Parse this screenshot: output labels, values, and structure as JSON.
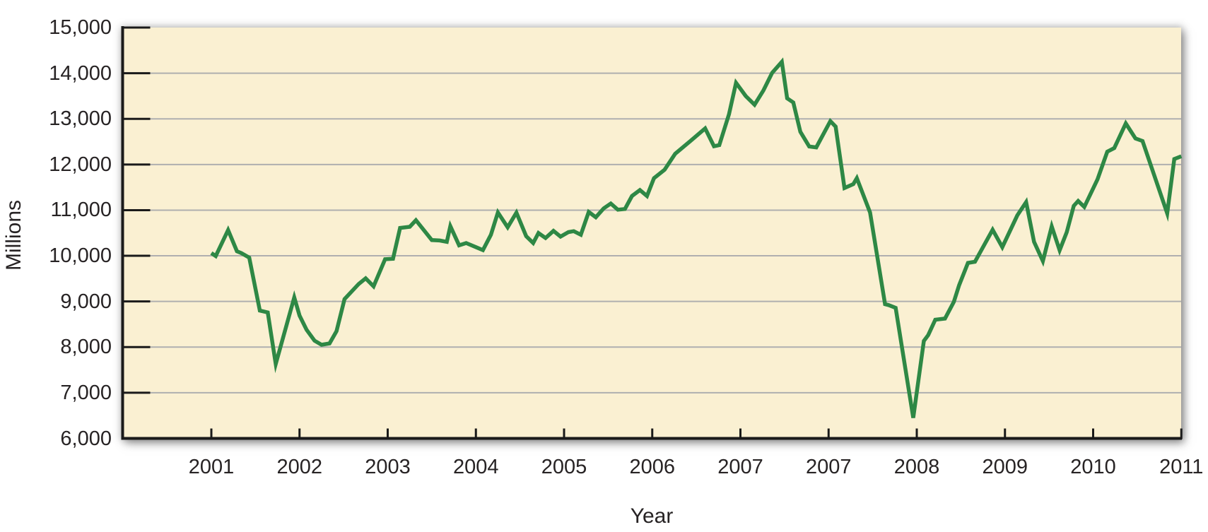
{
  "chart_data": {
    "type": "line",
    "title": "",
    "xlabel": "Year",
    "ylabel": "Millions",
    "grid": true,
    "legend": false,
    "ylim": [
      6000,
      15000
    ],
    "y_ticks": [
      6000,
      7000,
      8000,
      9000,
      10000,
      11000,
      12000,
      13000,
      14000,
      15000
    ],
    "y_tick_labels": [
      "6,000",
      "7,000",
      "8,000",
      "9,000",
      "10,000",
      "11,000",
      "12,000",
      "13,000",
      "14,000",
      "15,000"
    ],
    "x_tick_labels": [
      "2001",
      "2002",
      "2003",
      "2004",
      "2005",
      "2006",
      "2007",
      "2007",
      "2008",
      "2009",
      "2010",
      "2011"
    ],
    "colors": {
      "line": "#2E8845",
      "plot_background": "#FAF0D2",
      "gridline": "#AFAFAF",
      "axis": "#1A1A1A",
      "text": "#272324"
    },
    "series": [
      {
        "points": [
          [
            0.0,
            10060
          ],
          [
            0.05,
            9995
          ],
          [
            0.19,
            10565
          ],
          [
            0.29,
            10100
          ],
          [
            0.34,
            10060
          ],
          [
            0.43,
            9960
          ],
          [
            0.55,
            8800
          ],
          [
            0.64,
            8760
          ],
          [
            0.73,
            7630
          ],
          [
            0.94,
            9090
          ],
          [
            1.0,
            8690
          ],
          [
            1.08,
            8380
          ],
          [
            1.17,
            8140
          ],
          [
            1.25,
            8050
          ],
          [
            1.34,
            8080
          ],
          [
            1.42,
            8350
          ],
          [
            1.51,
            9050
          ],
          [
            1.67,
            9380
          ],
          [
            1.75,
            9505
          ],
          [
            1.84,
            9330
          ],
          [
            1.97,
            9925
          ],
          [
            2.06,
            9935
          ],
          [
            2.14,
            10610
          ],
          [
            2.25,
            10635
          ],
          [
            2.32,
            10780
          ],
          [
            2.5,
            10345
          ],
          [
            2.59,
            10335
          ],
          [
            2.67,
            10305
          ],
          [
            2.71,
            10650
          ],
          [
            2.81,
            10230
          ],
          [
            2.89,
            10280
          ],
          [
            3.0,
            10190
          ],
          [
            3.08,
            10125
          ],
          [
            3.17,
            10460
          ],
          [
            3.25,
            10950
          ],
          [
            3.36,
            10625
          ],
          [
            3.46,
            10945
          ],
          [
            3.57,
            10430
          ],
          [
            3.65,
            10280
          ],
          [
            3.71,
            10500
          ],
          [
            3.79,
            10390
          ],
          [
            3.88,
            10545
          ],
          [
            3.96,
            10420
          ],
          [
            4.05,
            10520
          ],
          [
            4.11,
            10540
          ],
          [
            4.19,
            10460
          ],
          [
            4.28,
            10960
          ],
          [
            4.36,
            10845
          ],
          [
            4.45,
            11040
          ],
          [
            4.53,
            11145
          ],
          [
            4.61,
            11010
          ],
          [
            4.69,
            11025
          ],
          [
            4.77,
            11310
          ],
          [
            4.86,
            11440
          ],
          [
            4.94,
            11310
          ],
          [
            5.02,
            11700
          ],
          [
            5.14,
            11885
          ],
          [
            5.26,
            12235
          ],
          [
            5.43,
            12510
          ],
          [
            5.6,
            12790
          ],
          [
            5.7,
            12400
          ],
          [
            5.76,
            12425
          ],
          [
            5.87,
            13100
          ],
          [
            5.95,
            13790
          ],
          [
            6.06,
            13500
          ],
          [
            6.16,
            13310
          ],
          [
            6.26,
            13620
          ],
          [
            6.36,
            14010
          ],
          [
            6.47,
            14250
          ],
          [
            6.53,
            13450
          ],
          [
            6.6,
            13360
          ],
          [
            6.68,
            12715
          ],
          [
            6.78,
            12395
          ],
          [
            6.86,
            12375
          ],
          [
            7.02,
            12950
          ],
          [
            7.08,
            12830
          ],
          [
            7.18,
            11485
          ],
          [
            7.28,
            11570
          ],
          [
            7.32,
            11700
          ],
          [
            7.47,
            10950
          ],
          [
            7.64,
            8940
          ],
          [
            7.68,
            8920
          ],
          [
            7.76,
            8860
          ],
          [
            7.96,
            6450
          ],
          [
            8.08,
            8135
          ],
          [
            8.13,
            8265
          ],
          [
            8.21,
            8600
          ],
          [
            8.32,
            8625
          ],
          [
            8.42,
            8990
          ],
          [
            8.48,
            9355
          ],
          [
            8.58,
            9845
          ],
          [
            8.66,
            9870
          ],
          [
            8.86,
            10570
          ],
          [
            8.97,
            10190
          ],
          [
            9.14,
            10885
          ],
          [
            9.24,
            11175
          ],
          [
            9.33,
            10305
          ],
          [
            9.43,
            9885
          ],
          [
            9.53,
            10645
          ],
          [
            9.62,
            10120
          ],
          [
            9.7,
            10515
          ],
          [
            9.78,
            11095
          ],
          [
            9.83,
            11200
          ],
          [
            9.9,
            11070
          ],
          [
            10.05,
            11675
          ],
          [
            10.16,
            12280
          ],
          [
            10.24,
            12360
          ],
          [
            10.37,
            12900
          ],
          [
            10.48,
            12570
          ],
          [
            10.56,
            12515
          ],
          [
            10.84,
            10930
          ],
          [
            10.92,
            12120
          ],
          [
            11.0,
            12180
          ]
        ]
      }
    ]
  }
}
